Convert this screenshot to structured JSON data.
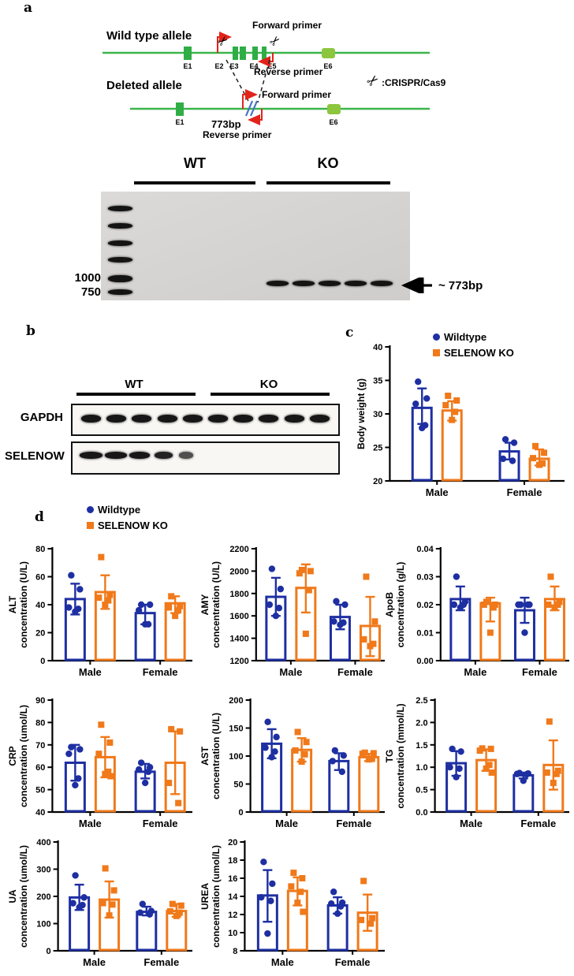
{
  "figure": {
    "panel_labels": {
      "a": "a",
      "b": "b",
      "c": "c",
      "d": "d"
    }
  },
  "colors": {
    "wildtype": "#1E2FA2",
    "selenow_ko": "#F0791A",
    "gene_line": "#3CB54A",
    "exon": "#2FAE46",
    "exon_light": "#8CC63E",
    "primer_arrow": "#E2231A",
    "deletion_slash": "#4472C4"
  },
  "panel_a": {
    "wild_type_label": "Wild type allele",
    "deleted_label": "Deleted allele",
    "forward_primer_label": "Forward primer",
    "reverse_primer_label": "Reverse primer",
    "forward_primer_label_2": "Forward primer",
    "reverse_primer_label_2": "Reverse primer",
    "size_label": "773bp",
    "crispr_legend": ":CRISPR/Cas9",
    "scissors_icon": "✂",
    "wt_exons": [
      "E1",
      "E2",
      "E3",
      "E4",
      "E5",
      "E6"
    ],
    "deleted_exons": [
      "E1",
      "E6"
    ]
  },
  "gel": {
    "group_wt": "WT",
    "group_ko": "KO",
    "marker_labels": [
      "1000",
      "750"
    ],
    "band_annotation": "~ 773bp",
    "ko_lane_count": 5,
    "ladder_band_count": 6
  },
  "panel_b": {
    "group_wt": "WT",
    "group_ko": "KO",
    "rows": [
      {
        "label": "GAPDH",
        "wt_bands": 5,
        "ko_bands": 5
      },
      {
        "label": "SELENOW",
        "wt_bands": 5,
        "ko_bands": 0
      }
    ]
  },
  "legend": {
    "wildtype": "Wildtype",
    "selenow_ko": "SELENOW KO"
  },
  "chart_data": [
    {
      "id": "body_weight",
      "type": "bar",
      "ylabel_lines": [
        "Body weight (g)"
      ],
      "ylim": [
        20,
        40
      ],
      "yticks": [
        20,
        25,
        30,
        35,
        40
      ],
      "ydec": 0,
      "categories": [
        "Male",
        "Female"
      ],
      "series": [
        {
          "name": "Wildtype",
          "color_key": "wildtype",
          "marker": "circle",
          "bars": [
            30.9,
            24.4
          ],
          "err": [
            [
              28.5,
              33.8
            ],
            [
              23.2,
              25.7
            ]
          ],
          "points": [
            [
              34.8,
              32.3,
              31.5,
              28.3,
              27.9
            ],
            [
              26.2,
              25.7,
              23.3,
              23.0
            ]
          ]
        },
        {
          "name": "SELENOW KO",
          "color_key": "selenow_ko",
          "marker": "square",
          "bars": [
            30.5,
            23.3
          ],
          "err": [
            [
              29.0,
              31.9
            ],
            [
              22.3,
              24.7
            ]
          ],
          "points": [
            [
              32.7,
              32.0,
              31.3,
              30.3,
              29.1
            ],
            [
              25.2,
              24.2,
              23.4,
              22.6,
              22.4
            ]
          ]
        }
      ]
    },
    {
      "id": "alt",
      "type": "bar",
      "ylabel_lines": [
        "ALT",
        "concentration (U/L)"
      ],
      "ylim": [
        0,
        80
      ],
      "yticks": [
        0,
        20,
        40,
        60,
        80
      ],
      "ydec": 0,
      "categories": [
        "Male",
        "Female"
      ],
      "series": [
        {
          "name": "Wildtype",
          "color_key": "wildtype",
          "marker": "circle",
          "bars": [
            44,
            34
          ],
          "err": [
            [
              33,
              55
            ],
            [
              26,
              40
            ]
          ],
          "points": [
            [
              61,
              51,
              38,
              37,
              35
            ],
            [
              40,
              40,
              36,
              26,
              26
            ]
          ]
        },
        {
          "name": "SELENOW KO",
          "color_key": "selenow_ko",
          "marker": "square",
          "bars": [
            49,
            41
          ],
          "err": [
            [
              37,
              61
            ],
            [
              34,
              46
            ]
          ],
          "points": [
            [
              74,
              47,
              45,
              43,
              40
            ],
            [
              46,
              39,
              38,
              36,
              32
            ]
          ]
        }
      ]
    },
    {
      "id": "amy",
      "type": "bar",
      "ylabel_lines": [
        "AMY",
        "concentration (U/L)"
      ],
      "ylim": [
        1200,
        2200
      ],
      "yticks": [
        1200,
        1400,
        1600,
        1800,
        2000,
        2200
      ],
      "ydec": 0,
      "categories": [
        "Male",
        "Female"
      ],
      "series": [
        {
          "name": "Wildtype",
          "color_key": "wildtype",
          "marker": "circle",
          "bars": [
            1770,
            1590
          ],
          "err": [
            [
              1600,
              1940
            ],
            [
              1480,
              1700
            ]
          ],
          "points": [
            [
              2020,
              1840,
              1700,
              1670,
              1600
            ],
            [
              1730,
              1700,
              1550,
              1540,
              1520
            ]
          ]
        },
        {
          "name": "SELENOW KO",
          "color_key": "selenow_ko",
          "marker": "square",
          "bars": [
            1850,
            1510
          ],
          "err": [
            [
              1630,
              2060
            ],
            [
              1240,
              1770
            ]
          ],
          "points": [
            [
              2010,
              2000,
              1980,
              1830,
              1440
            ],
            [
              1950,
              1550,
              1390,
              1350,
              1330
            ]
          ]
        }
      ]
    },
    {
      "id": "apob",
      "type": "bar",
      "ylabel_lines": [
        "ApoB",
        "concentration (g/L)"
      ],
      "ylim": [
        0,
        0.04
      ],
      "yticks": [
        0,
        0.01,
        0.02,
        0.03,
        0.04
      ],
      "ydec": 2,
      "categories": [
        "Male",
        "Female"
      ],
      "series": [
        {
          "name": "Wildtype",
          "color_key": "wildtype",
          "marker": "circle",
          "bars": [
            0.022,
            0.018
          ],
          "err": [
            [
              0.018,
              0.0265
            ],
            [
              0.0135,
              0.0225
            ]
          ],
          "points": [
            [
              0.03,
              0.021,
              0.02,
              0.02,
              0.019
            ],
            [
              0.02,
              0.02,
              0.02,
              0.02,
              0.01
            ]
          ]
        },
        {
          "name": "SELENOW KO",
          "color_key": "selenow_ko",
          "marker": "square",
          "bars": [
            0.0205,
            0.022
          ],
          "err": [
            [
              0.014,
              0.0225
            ],
            [
              0.018,
              0.0265
            ]
          ],
          "points": [
            [
              0.021,
              0.02,
              0.02,
              0.019,
              0.01
            ],
            [
              0.03,
              0.021,
              0.02,
              0.02,
              0.019
            ]
          ]
        }
      ]
    },
    {
      "id": "crp",
      "type": "bar",
      "ylabel_lines": [
        "CRP",
        "concentration (umol/L)"
      ],
      "ylim": [
        40,
        90
      ],
      "yticks": [
        40,
        50,
        60,
        70,
        80,
        90
      ],
      "ydec": 0,
      "categories": [
        "Male",
        "Female"
      ],
      "series": [
        {
          "name": "Wildtype",
          "color_key": "wildtype",
          "marker": "circle",
          "bars": [
            62,
            58
          ],
          "err": [
            [
              54,
              70
            ],
            [
              55,
              61.5
            ]
          ],
          "points": [
            [
              69,
              68,
              66,
              55,
              52
            ],
            [
              62,
              60,
              59,
              58,
              53
            ]
          ]
        },
        {
          "name": "SELENOW KO",
          "color_key": "selenow_ko",
          "marker": "square",
          "bars": [
            64.5,
            62
          ],
          "err": [
            [
              55.5,
              73.5
            ],
            [
              48,
              76
            ]
          ],
          "points": [
            [
              79,
              71,
              66,
              58,
              57,
              56
            ],
            [
              77,
              76,
              53,
              44
            ]
          ]
        }
      ]
    },
    {
      "id": "ast",
      "type": "bar",
      "ylabel_lines": [
        "AST",
        "concentration (U/L)"
      ],
      "ylim": [
        0,
        200
      ],
      "yticks": [
        0,
        50,
        100,
        150,
        200
      ],
      "ydec": 0,
      "categories": [
        "Male",
        "Female"
      ],
      "series": [
        {
          "name": "Wildtype",
          "color_key": "wildtype",
          "marker": "circle",
          "bars": [
            122,
            91
          ],
          "err": [
            [
              96,
              148
            ],
            [
              75,
              105
            ]
          ],
          "points": [
            [
              161,
              134,
              115,
              108,
              98
            ],
            [
              110,
              101,
              91,
              72
            ]
          ]
        },
        {
          "name": "SELENOW KO",
          "color_key": "selenow_ko",
          "marker": "square",
          "bars": [
            111,
            98
          ],
          "err": [
            [
              90,
              132
            ],
            [
              91,
              104
            ]
          ],
          "points": [
            [
              143,
              125,
              110,
              103,
              90
            ],
            [
              106,
              105,
              104,
              95,
              94
            ]
          ]
        }
      ]
    },
    {
      "id": "tg",
      "type": "bar",
      "ylabel_lines": [
        "TG",
        "concentration (mmol/L)"
      ],
      "ylim": [
        0,
        2.5
      ],
      "yticks": [
        0,
        0.5,
        1.0,
        1.5,
        2.0,
        2.5
      ],
      "ydec": 1,
      "categories": [
        "Male",
        "Female"
      ],
      "series": [
        {
          "name": "Wildtype",
          "color_key": "wildtype",
          "marker": "circle",
          "bars": [
            1.09,
            0.82
          ],
          "err": [
            [
              0.81,
              1.36
            ],
            [
              0.75,
              0.88
            ]
          ],
          "points": [
            [
              1.41,
              1.35,
              1.0,
              0.97,
              0.78
            ],
            [
              0.87,
              0.86,
              0.85,
              0.84,
              0.7
            ]
          ]
        },
        {
          "name": "SELENOW KO",
          "color_key": "selenow_ko",
          "marker": "square",
          "bars": [
            1.16,
            1.05
          ],
          "err": [
            [
              0.92,
              1.4
            ],
            [
              0.5,
              1.6
            ]
          ],
          "points": [
            [
              1.42,
              1.41,
              1.37,
              1.05,
              0.97,
              0.88
            ],
            [
              2.02,
              0.92,
              0.88,
              0.85,
              0.65
            ]
          ]
        }
      ]
    },
    {
      "id": "ua",
      "type": "bar",
      "ylabel_lines": [
        "UA",
        "concentration (umol/L)"
      ],
      "ylim": [
        0,
        400
      ],
      "yticks": [
        0,
        100,
        200,
        300,
        400
      ],
      "ydec": 0,
      "categories": [
        "Male",
        "Female"
      ],
      "series": [
        {
          "name": "Wildtype",
          "color_key": "wildtype",
          "marker": "circle",
          "bars": [
            196,
            143
          ],
          "err": [
            [
              150,
              243
            ],
            [
              130,
              162
            ]
          ],
          "points": [
            [
              277,
              196,
              175,
              168,
              160
            ],
            [
              172,
              146,
              140,
              134
            ]
          ]
        },
        {
          "name": "SELENOW KO",
          "color_key": "selenow_ko",
          "marker": "square",
          "bars": [
            188,
            146
          ],
          "err": [
            [
              122,
              255
            ],
            [
              125,
              172
            ]
          ],
          "points": [
            [
              303,
              222,
              175,
              170,
              130
            ],
            [
              172,
              166,
              145,
              140,
              128
            ]
          ]
        }
      ]
    },
    {
      "id": "urea",
      "type": "bar",
      "ylabel_lines": [
        "UREA",
        "concentration (umol/L)"
      ],
      "ylim": [
        8,
        20
      ],
      "yticks": [
        8,
        10,
        12,
        14,
        16,
        18,
        20
      ],
      "ydec": 0,
      "categories": [
        "Male",
        "Female"
      ],
      "series": [
        {
          "name": "Wildtype",
          "color_key": "wildtype",
          "marker": "circle",
          "bars": [
            14.1,
            13.0
          ],
          "err": [
            [
              11.2,
              16.9
            ],
            [
              12.1,
              13.9
            ]
          ],
          "points": [
            [
              17.8,
              15.4,
              13.9,
              13.5,
              9.9
            ],
            [
              14.5,
              13.3,
              13.2,
              12.9,
              12.1
            ]
          ]
        },
        {
          "name": "SELENOW KO",
          "color_key": "selenow_ko",
          "marker": "square",
          "bars": [
            14.6,
            12.2
          ],
          "err": [
            [
              13.0,
              16.1
            ],
            [
              10.2,
              14.2
            ]
          ],
          "points": [
            [
              16.6,
              16.0,
              15.1,
              14.5,
              13.3,
              12.3
            ],
            [
              15.7,
              11.6,
              11.4,
              11.0
            ]
          ]
        }
      ]
    }
  ]
}
